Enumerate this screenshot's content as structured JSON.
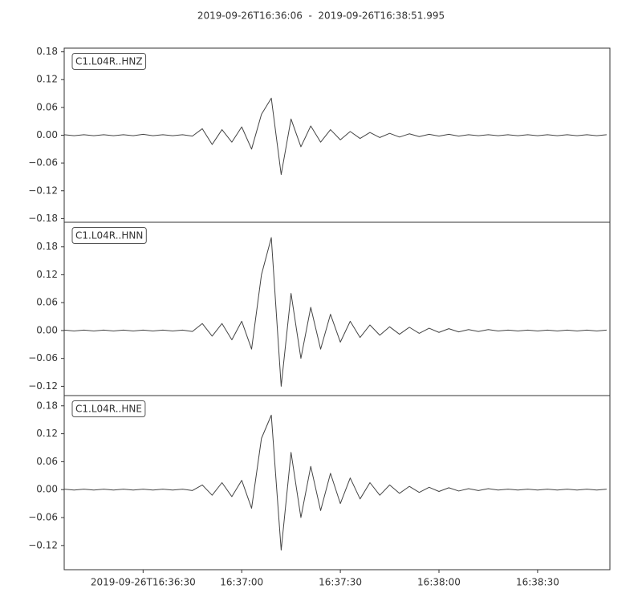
{
  "title": "2019-09-26T16:36:06  -  2019-09-26T16:38:51.995",
  "chart_data": [
    {
      "type": "line",
      "label": "C1.L04R..HNZ",
      "color": "#444444",
      "xlim": [
        "2019-09-26T16:36:06",
        "2019-09-26T16:38:51.995"
      ],
      "ylim": [
        -0.188,
        0.188
      ],
      "yticks": [
        {
          "value": -0.18,
          "label": "−0.18"
        },
        {
          "value": -0.12,
          "label": "−0.12"
        },
        {
          "value": -0.06,
          "label": "−0.06"
        },
        {
          "value": 0,
          "label": "0.00"
        },
        0.06,
        0.12,
        0.18
      ],
      "x": [
        "16:36:06",
        "16:36:09",
        "16:36:12",
        "16:36:15",
        "16:36:18",
        "16:36:21",
        "16:36:24",
        "16:36:27",
        "16:36:30",
        "16:36:33",
        "16:36:36",
        "16:36:39",
        "16:36:42",
        "16:36:45",
        "16:36:48",
        "16:36:51",
        "16:36:54",
        "16:36:57",
        "16:37:00",
        "16:37:03",
        "16:37:06",
        "16:37:09",
        "16:37:12",
        "16:37:15",
        "16:37:18",
        "16:37:21",
        "16:37:24",
        "16:37:27",
        "16:37:30",
        "16:37:33",
        "16:37:36",
        "16:37:39",
        "16:37:42",
        "16:37:45",
        "16:37:48",
        "16:37:51",
        "16:37:54",
        "16:37:57",
        "16:38:00",
        "16:38:03",
        "16:38:06",
        "16:38:09",
        "16:38:12",
        "16:38:15",
        "16:38:18",
        "16:38:21",
        "16:38:24",
        "16:38:27",
        "16:38:30",
        "16:38:33",
        "16:38:36",
        "16:38:39",
        "16:38:42",
        "16:38:45",
        "16:38:48",
        "16:38:51"
      ],
      "values": [
        0.001,
        -0.001,
        0.001,
        -0.001,
        0.001,
        -0.001,
        0.001,
        -0.001,
        0.002,
        -0.001,
        0.001,
        -0.001,
        0.001,
        -0.002,
        0.014,
        -0.02,
        0.012,
        -0.015,
        0.018,
        -0.03,
        0.045,
        0.08,
        -0.085,
        0.035,
        -0.025,
        0.02,
        -0.015,
        0.012,
        -0.01,
        0.008,
        -0.007,
        0.006,
        -0.005,
        0.004,
        -0.004,
        0.003,
        -0.003,
        0.002,
        -0.002,
        0.002,
        -0.002,
        0.001,
        -0.001,
        0.001,
        -0.001,
        0.001,
        -0.001,
        0.001,
        -0.001,
        0.001,
        -0.001,
        0.001,
        -0.001,
        0.001,
        -0.001,
        0.001
      ]
    },
    {
      "type": "line",
      "label": "C1.L04R..HNN",
      "color": "#444444",
      "xlim": [
        "2019-09-26T16:36:06",
        "2019-09-26T16:38:51.995"
      ],
      "ylim": [
        -0.14,
        0.233
      ],
      "yticks": [
        {
          "value": -0.12,
          "label": "−0.12"
        },
        {
          "value": -0.06,
          "label": "−0.06"
        },
        {
          "value": 0,
          "label": "0.00"
        },
        0.06,
        0.12,
        0.18
      ],
      "x": [
        "16:36:06",
        "16:36:09",
        "16:36:12",
        "16:36:15",
        "16:36:18",
        "16:36:21",
        "16:36:24",
        "16:36:27",
        "16:36:30",
        "16:36:33",
        "16:36:36",
        "16:36:39",
        "16:36:42",
        "16:36:45",
        "16:36:48",
        "16:36:51",
        "16:36:54",
        "16:36:57",
        "16:37:00",
        "16:37:03",
        "16:37:06",
        "16:37:09",
        "16:37:12",
        "16:37:15",
        "16:37:18",
        "16:37:21",
        "16:37:24",
        "16:37:27",
        "16:37:30",
        "16:37:33",
        "16:37:36",
        "16:37:39",
        "16:37:42",
        "16:37:45",
        "16:37:48",
        "16:37:51",
        "16:37:54",
        "16:37:57",
        "16:38:00",
        "16:38:03",
        "16:38:06",
        "16:38:09",
        "16:38:12",
        "16:38:15",
        "16:38:18",
        "16:38:21",
        "16:38:24",
        "16:38:27",
        "16:38:30",
        "16:38:33",
        "16:38:36",
        "16:38:39",
        "16:38:42",
        "16:38:45",
        "16:38:48",
        "16:38:51"
      ],
      "values": [
        0.001,
        -0.001,
        0.001,
        -0.001,
        0.001,
        -0.001,
        0.001,
        -0.001,
        0.001,
        -0.001,
        0.001,
        -0.001,
        0.001,
        -0.002,
        0.015,
        -0.012,
        0.015,
        -0.02,
        0.02,
        -0.04,
        0.12,
        0.2,
        -0.12,
        0.08,
        -0.06,
        0.05,
        -0.04,
        0.035,
        -0.025,
        0.02,
        -0.015,
        0.012,
        -0.01,
        0.008,
        -0.008,
        0.007,
        -0.006,
        0.005,
        -0.004,
        0.004,
        -0.003,
        0.002,
        -0.002,
        0.002,
        -0.001,
        0.001,
        -0.001,
        0.001,
        -0.001,
        0.001,
        -0.001,
        0.001,
        -0.001,
        0.001,
        -0.001,
        0.001
      ]
    },
    {
      "type": "line",
      "label": "C1.L04R..HNE",
      "color": "#444444",
      "xlim": [
        "2019-09-26T16:36:06",
        "2019-09-26T16:38:51.995"
      ],
      "ylim": [
        -0.172,
        0.202
      ],
      "yticks": [
        {
          "value": -0.12,
          "label": "−0.12"
        },
        {
          "value": -0.06,
          "label": "−0.06"
        },
        {
          "value": 0,
          "label": "0.00"
        },
        0.06,
        0.12,
        0.18
      ],
      "xticks": [
        {
          "value": "16:36:30",
          "label": "2019-09-26T16:36:30"
        },
        "16:37:00",
        "16:37:30",
        "16:38:00",
        "16:38:30"
      ],
      "x": [
        "16:36:06",
        "16:36:09",
        "16:36:12",
        "16:36:15",
        "16:36:18",
        "16:36:21",
        "16:36:24",
        "16:36:27",
        "16:36:30",
        "16:36:33",
        "16:36:36",
        "16:36:39",
        "16:36:42",
        "16:36:45",
        "16:36:48",
        "16:36:51",
        "16:36:54",
        "16:36:57",
        "16:37:00",
        "16:37:03",
        "16:37:06",
        "16:37:09",
        "16:37:12",
        "16:37:15",
        "16:37:18",
        "16:37:21",
        "16:37:24",
        "16:37:27",
        "16:37:30",
        "16:37:33",
        "16:37:36",
        "16:37:39",
        "16:37:42",
        "16:37:45",
        "16:37:48",
        "16:37:51",
        "16:37:54",
        "16:37:57",
        "16:38:00",
        "16:38:03",
        "16:38:06",
        "16:38:09",
        "16:38:12",
        "16:38:15",
        "16:38:18",
        "16:38:21",
        "16:38:24",
        "16:38:27",
        "16:38:30",
        "16:38:33",
        "16:38:36",
        "16:38:39",
        "16:38:42",
        "16:38:45",
        "16:38:48",
        "16:38:51"
      ],
      "values": [
        0.001,
        -0.001,
        0.001,
        -0.001,
        0.001,
        -0.001,
        0.001,
        -0.001,
        0.001,
        -0.001,
        0.001,
        -0.001,
        0.001,
        -0.002,
        0.01,
        -0.012,
        0.015,
        -0.015,
        0.02,
        -0.04,
        0.11,
        0.16,
        -0.13,
        0.08,
        -0.06,
        0.05,
        -0.045,
        0.035,
        -0.03,
        0.025,
        -0.02,
        0.015,
        -0.012,
        0.01,
        -0.008,
        0.007,
        -0.006,
        0.005,
        -0.004,
        0.004,
        -0.003,
        0.002,
        -0.002,
        0.002,
        -0.001,
        0.001,
        -0.001,
        0.001,
        -0.001,
        0.001,
        -0.001,
        0.001,
        -0.001,
        0.001,
        -0.001,
        0.001
      ]
    }
  ]
}
